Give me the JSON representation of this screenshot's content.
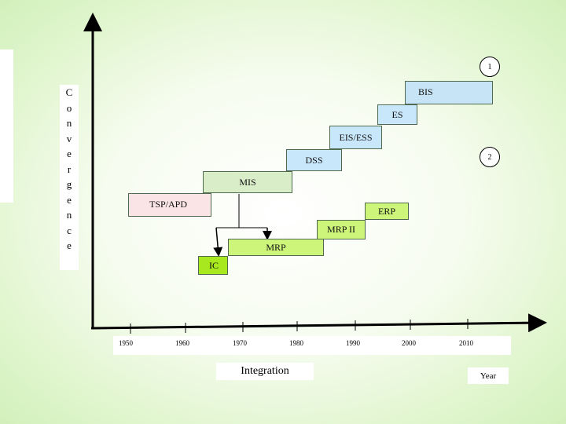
{
  "y_axis_label": [
    "C",
    "o",
    "n",
    "v",
    "e",
    "r",
    "g",
    "e",
    "n",
    "c",
    "e"
  ],
  "x_axis": {
    "ticks": [
      "1950",
      "1960",
      "1970",
      "1980",
      "1990",
      "2000",
      "2010"
    ],
    "caption": "Integration",
    "unit_label": "Year"
  },
  "markers": {
    "one": "1",
    "two": "2"
  },
  "boxes": {
    "bis": "BIS",
    "es": "ES",
    "eis": "EIS/ESS",
    "dss": "DSS",
    "mis": "MIS",
    "tsp": "TSP/APD",
    "erp": "ERP",
    "mrp2": "MRP II",
    "mrp": "MRP",
    "ic": "IC"
  },
  "colors": {
    "bis": "#c6e4f6",
    "blue": "#c9e7fb",
    "green": "#d8edc8",
    "lime": "#ccf57a",
    "lime_bright": "#a8e81e",
    "pink": "#fbe4e6"
  }
}
